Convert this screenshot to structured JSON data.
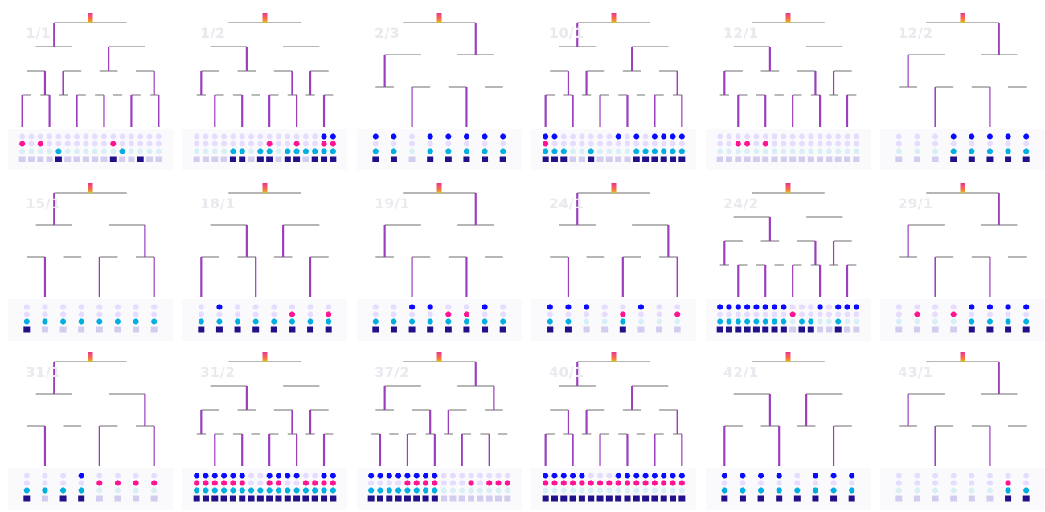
{
  "panels": [
    {
      "label": "1/1",
      "tips": 16,
      "rows": [
        [
          1,
          1,
          1,
          1,
          1,
          1,
          1,
          1,
          1,
          1,
          1,
          1,
          1,
          1,
          1,
          1
        ],
        [
          2,
          0,
          2,
          0,
          0,
          0,
          0,
          0,
          0,
          0,
          2,
          0,
          0,
          0,
          0,
          0
        ],
        [
          0,
          0,
          0,
          0,
          3,
          0,
          0,
          0,
          0,
          0,
          0,
          3,
          0,
          0,
          0,
          0
        ],
        [
          1,
          1,
          1,
          1,
          4,
          1,
          1,
          1,
          1,
          1,
          4,
          1,
          1,
          4,
          1,
          1
        ]
      ]
    },
    {
      "label": "1/2",
      "tips": 16,
      "rows": [
        [
          1,
          1,
          1,
          1,
          1,
          1,
          1,
          1,
          1,
          1,
          1,
          1,
          1,
          1,
          2,
          2
        ],
        [
          0,
          0,
          0,
          0,
          0,
          0,
          0,
          0,
          2,
          0,
          0,
          2,
          0,
          0,
          2,
          2
        ],
        [
          0,
          0,
          0,
          0,
          3,
          3,
          0,
          3,
          3,
          0,
          3,
          3,
          3,
          3,
          3,
          3
        ],
        [
          1,
          1,
          1,
          1,
          4,
          4,
          1,
          4,
          4,
          1,
          4,
          4,
          1,
          4,
          4,
          4
        ]
      ]
    },
    {
      "label": "2/3",
      "tips": 8,
      "rows": [
        [
          2,
          2,
          0,
          2,
          2,
          2,
          2,
          2
        ],
        [
          0,
          0,
          0,
          0,
          0,
          0,
          0,
          0
        ],
        [
          3,
          3,
          0,
          3,
          3,
          3,
          3,
          3
        ],
        [
          4,
          4,
          1,
          4,
          4,
          4,
          4,
          4
        ]
      ]
    },
    {
      "label": "10/1",
      "tips": 16,
      "rows": [
        [
          2,
          2,
          1,
          1,
          1,
          1,
          1,
          1,
          2,
          1,
          2,
          1,
          2,
          2,
          2,
          2
        ],
        [
          2,
          0,
          0,
          0,
          0,
          0,
          0,
          0,
          0,
          0,
          0,
          0,
          0,
          0,
          0,
          0
        ],
        [
          3,
          3,
          3,
          0,
          0,
          3,
          0,
          0,
          0,
          0,
          3,
          3,
          3,
          3,
          3,
          3
        ],
        [
          4,
          4,
          4,
          1,
          1,
          4,
          1,
          1,
          1,
          1,
          4,
          4,
          4,
          4,
          4,
          4
        ]
      ]
    },
    {
      "label": "12/1",
      "tips": 16,
      "rows": [
        [
          1,
          1,
          1,
          1,
          1,
          1,
          1,
          1,
          1,
          1,
          1,
          1,
          1,
          1,
          1,
          1
        ],
        [
          0,
          0,
          2,
          2,
          0,
          2,
          0,
          0,
          0,
          0,
          0,
          0,
          0,
          0,
          0,
          0
        ],
        [
          0,
          0,
          0,
          0,
          0,
          0,
          0,
          0,
          0,
          0,
          0,
          0,
          0,
          0,
          0,
          0
        ],
        [
          1,
          1,
          1,
          1,
          1,
          1,
          1,
          1,
          1,
          1,
          1,
          1,
          1,
          1,
          1,
          1
        ]
      ]
    },
    {
      "label": "12/2",
      "tips": 8,
      "rows": [
        [
          1,
          1,
          1,
          2,
          2,
          2,
          2,
          2
        ],
        [
          0,
          0,
          0,
          0,
          0,
          0,
          0,
          0
        ],
        [
          0,
          0,
          0,
          3,
          3,
          3,
          3,
          3
        ],
        [
          1,
          1,
          1,
          4,
          4,
          4,
          4,
          4
        ]
      ]
    },
    {
      "label": "15/1",
      "tips": 8,
      "rows": [
        [
          1,
          1,
          1,
          1,
          1,
          1,
          1,
          1
        ],
        [
          0,
          0,
          0,
          0,
          0,
          0,
          0,
          0
        ],
        [
          3,
          3,
          3,
          3,
          3,
          3,
          3,
          3
        ],
        [
          4,
          1,
          1,
          1,
          1,
          1,
          1,
          1
        ]
      ]
    },
    {
      "label": "18/1",
      "tips": 8,
      "rows": [
        [
          1,
          2,
          1,
          1,
          1,
          1,
          1,
          1
        ],
        [
          0,
          0,
          0,
          0,
          0,
          2,
          0,
          2
        ],
        [
          3,
          3,
          3,
          3,
          3,
          3,
          3,
          3
        ],
        [
          4,
          4,
          4,
          4,
          4,
          4,
          4,
          4
        ]
      ]
    },
    {
      "label": "19/1",
      "tips": 8,
      "rows": [
        [
          1,
          1,
          2,
          2,
          1,
          1,
          2,
          1
        ],
        [
          0,
          0,
          0,
          0,
          2,
          2,
          0,
          0
        ],
        [
          3,
          3,
          3,
          3,
          3,
          3,
          3,
          3
        ],
        [
          4,
          4,
          4,
          4,
          4,
          4,
          4,
          4
        ]
      ]
    },
    {
      "label": "24/1",
      "tips": 8,
      "rows": [
        [
          2,
          2,
          2,
          1,
          1,
          2,
          1,
          1
        ],
        [
          0,
          0,
          0,
          0,
          2,
          0,
          0,
          2
        ],
        [
          3,
          3,
          0,
          0,
          3,
          0,
          0,
          0
        ],
        [
          4,
          4,
          1,
          1,
          4,
          1,
          1,
          1
        ]
      ]
    },
    {
      "label": "24/2",
      "tips": 16,
      "rows": [
        [
          2,
          2,
          2,
          2,
          2,
          2,
          2,
          2,
          1,
          1,
          1,
          2,
          1,
          2,
          2,
          2
        ],
        [
          0,
          0,
          0,
          0,
          0,
          0,
          0,
          0,
          2,
          0,
          0,
          0,
          0,
          0,
          0,
          0
        ],
        [
          3,
          3,
          3,
          3,
          3,
          3,
          3,
          3,
          0,
          3,
          3,
          0,
          0,
          3,
          0,
          0
        ],
        [
          4,
          4,
          4,
          4,
          4,
          4,
          4,
          4,
          1,
          4,
          4,
          1,
          1,
          4,
          1,
          1
        ]
      ]
    },
    {
      "label": "29/1",
      "tips": 8,
      "rows": [
        [
          1,
          1,
          1,
          1,
          2,
          2,
          2,
          2
        ],
        [
          0,
          2,
          0,
          2,
          0,
          0,
          0,
          0
        ],
        [
          0,
          0,
          0,
          0,
          3,
          3,
          3,
          3
        ],
        [
          1,
          1,
          1,
          1,
          4,
          4,
          4,
          4
        ]
      ]
    },
    {
      "label": "31/1",
      "tips": 8,
      "rows": [
        [
          1,
          1,
          1,
          2,
          1,
          1,
          1,
          1
        ],
        [
          0,
          0,
          0,
          0,
          2,
          2,
          2,
          2
        ],
        [
          3,
          3,
          3,
          3,
          0,
          0,
          0,
          0
        ],
        [
          4,
          1,
          4,
          4,
          1,
          1,
          1,
          1
        ]
      ]
    },
    {
      "label": "31/2",
      "tips": 16,
      "rows": [
        [
          2,
          2,
          2,
          2,
          2,
          2,
          1,
          1,
          2,
          2,
          2,
          2,
          1,
          1,
          2,
          2
        ],
        [
          2,
          2,
          2,
          2,
          2,
          2,
          0,
          0,
          2,
          2,
          0,
          0,
          2,
          2,
          2,
          2
        ],
        [
          3,
          3,
          3,
          3,
          3,
          3,
          3,
          3,
          3,
          3,
          3,
          3,
          3,
          3,
          3,
          3
        ],
        [
          4,
          4,
          4,
          4,
          4,
          4,
          4,
          4,
          4,
          4,
          4,
          4,
          4,
          4,
          4,
          4
        ]
      ]
    },
    {
      "label": "37/2",
      "tips": 16,
      "rows": [
        [
          2,
          2,
          2,
          2,
          2,
          2,
          2,
          2,
          1,
          1,
          1,
          1,
          1,
          1,
          1,
          1
        ],
        [
          0,
          0,
          0,
          0,
          2,
          2,
          2,
          2,
          0,
          0,
          0,
          2,
          0,
          2,
          2,
          2
        ],
        [
          3,
          3,
          3,
          3,
          3,
          3,
          3,
          3,
          0,
          0,
          0,
          0,
          0,
          0,
          0,
          0
        ],
        [
          4,
          4,
          4,
          4,
          4,
          4,
          4,
          4,
          1,
          1,
          1,
          1,
          1,
          1,
          1,
          1
        ]
      ]
    },
    {
      "label": "40/1",
      "tips": 16,
      "rows": [
        [
          2,
          2,
          2,
          2,
          2,
          1,
          1,
          1,
          2,
          2,
          2,
          2,
          2,
          2,
          2,
          2
        ],
        [
          2,
          2,
          2,
          2,
          2,
          2,
          2,
          2,
          2,
          2,
          2,
          2,
          2,
          2,
          2,
          2
        ],
        [
          0,
          0,
          0,
          0,
          0,
          0,
          0,
          0,
          0,
          0,
          0,
          0,
          0,
          0,
          0,
          0
        ],
        [
          4,
          4,
          4,
          4,
          4,
          4,
          4,
          4,
          4,
          4,
          4,
          4,
          4,
          4,
          4,
          4
        ]
      ]
    },
    {
      "label": "42/1",
      "tips": 8,
      "rows": [
        [
          2,
          2,
          2,
          2,
          1,
          2,
          2,
          2
        ],
        [
          0,
          0,
          0,
          0,
          0,
          0,
          0,
          0
        ],
        [
          3,
          3,
          3,
          3,
          3,
          3,
          3,
          3
        ],
        [
          4,
          4,
          4,
          4,
          4,
          4,
          4,
          4
        ]
      ]
    },
    {
      "label": "43/1",
      "tips": 8,
      "rows": [
        [
          1,
          1,
          1,
          1,
          1,
          1,
          1,
          1
        ],
        [
          0,
          0,
          0,
          0,
          0,
          0,
          2,
          0
        ],
        [
          0,
          0,
          0,
          0,
          0,
          0,
          3,
          3
        ],
        [
          1,
          1,
          1,
          1,
          1,
          1,
          4,
          4
        ]
      ]
    }
  ],
  "colors": {
    "branch": "#9b3fbf",
    "hot": [
      "#e8368f",
      "#ff7a3d",
      "#c6d21e"
    ],
    "panel_bg": "#fafafd",
    "blue": "#0a0aff",
    "magenta": "#ff1493",
    "light": "#e6dcff",
    "pale": "#d8f0f5",
    "cyan": "#00aee0",
    "navy": "#20108a",
    "lavender": "#d2cdee"
  }
}
